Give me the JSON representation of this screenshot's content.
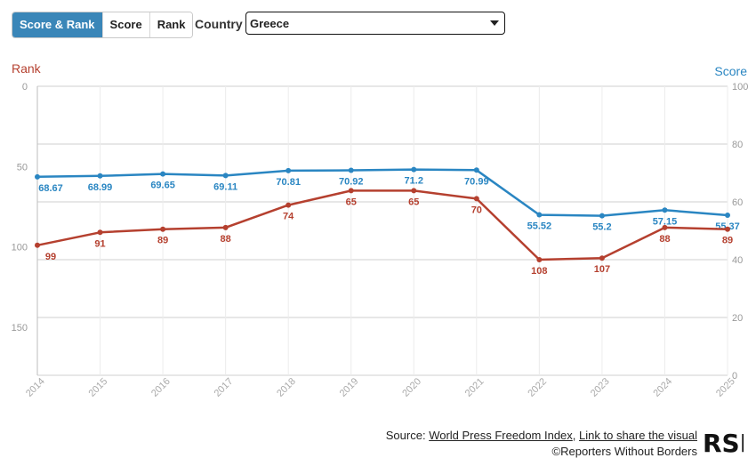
{
  "tabs": [
    {
      "label": "Score & Rank",
      "active": true
    },
    {
      "label": "Score",
      "active": false
    },
    {
      "label": "Rank",
      "active": false
    }
  ],
  "country": {
    "label": "Country",
    "selected": "Greece"
  },
  "chart_data": {
    "type": "line",
    "x": [
      "2014",
      "2015",
      "2016",
      "2017",
      "2018",
      "2019",
      "2020",
      "2021",
      "2022",
      "2023",
      "2024",
      "2025"
    ],
    "left_axis": {
      "label": "Rank",
      "ticks": [
        0,
        50,
        100,
        150
      ],
      "range": [
        0,
        180
      ],
      "inverted": true,
      "color": "#b5402f"
    },
    "right_axis": {
      "label": "Score",
      "ticks": [
        0,
        20,
        40,
        60,
        80,
        100
      ],
      "range": [
        0,
        100
      ],
      "color": "#2a86c2"
    },
    "series": [
      {
        "name": "Score",
        "axis": "right",
        "color": "#2a86c2",
        "values": [
          68.67,
          68.99,
          69.65,
          69.11,
          70.81,
          70.92,
          71.2,
          70.99,
          55.52,
          55.2,
          57.15,
          55.37
        ],
        "labels": [
          "68.67",
          "68.99",
          "69.65",
          "69.11",
          "70.81",
          "70.92",
          "71.2",
          "70.99",
          "55.52",
          "55.2",
          "57.15",
          "55.37"
        ]
      },
      {
        "name": "Rank",
        "axis": "left",
        "color": "#b5402f",
        "values": [
          99,
          91,
          89,
          88,
          74,
          65,
          65,
          70,
          108,
          107,
          88,
          89
        ],
        "labels": [
          "99",
          "91",
          "89",
          "88",
          "74",
          "65",
          "65",
          "70",
          "108",
          "107",
          "88",
          "89"
        ]
      }
    ],
    "grid": true
  },
  "footer": {
    "source_prefix": "Source: ",
    "source_link": "World Press Freedom Index",
    "separator": ", ",
    "share_link": "Link to share the visual",
    "copyright": "©Reporters Without Borders",
    "logo_text": "RSF"
  }
}
